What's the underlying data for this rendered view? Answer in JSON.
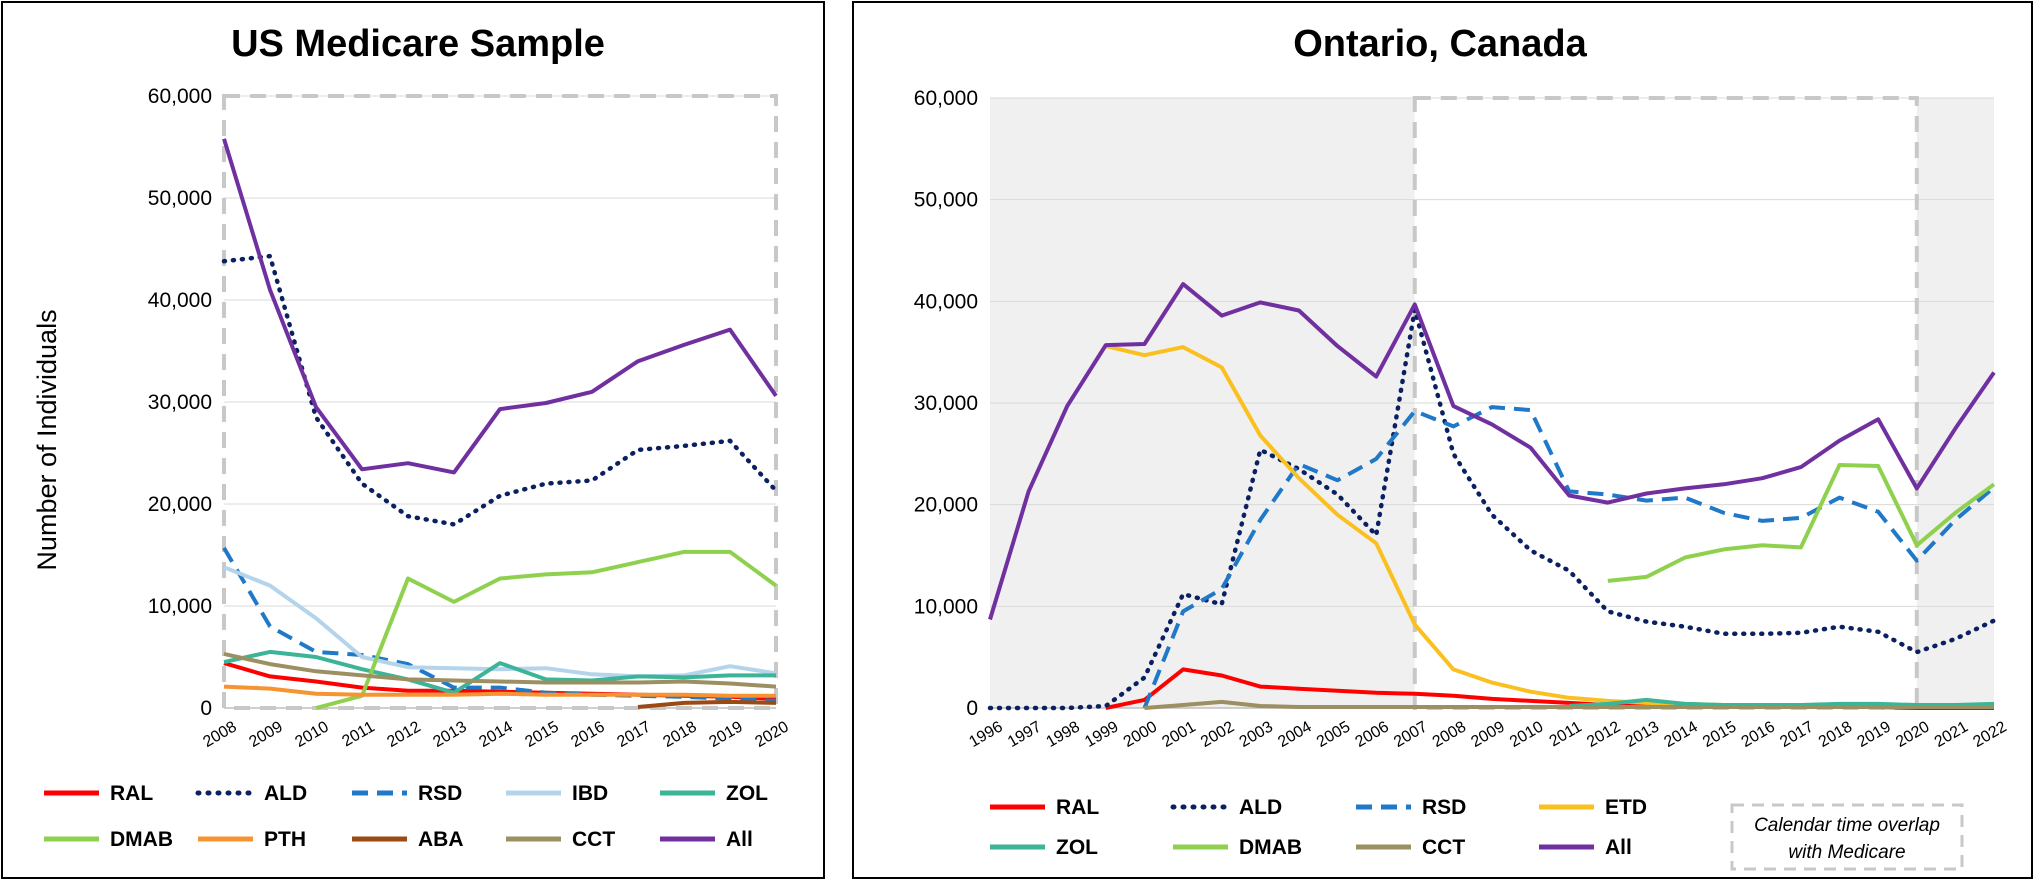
{
  "chart_data": [
    {
      "type": "line",
      "title": "US Medicare Sample",
      "ylabel": "Number of Individuals",
      "xlabel": "",
      "ylim": [
        0,
        60000
      ],
      "yticks": [
        "0",
        "10,000",
        "20,000",
        "30,000",
        "40,000",
        "50,000",
        "60,000"
      ],
      "x": [
        "2008",
        "2009",
        "2010",
        "2011",
        "2012",
        "2013",
        "2014",
        "2015",
        "2016",
        "2017",
        "2018",
        "2019",
        "2020"
      ],
      "series": [
        {
          "name": "RAL",
          "color": "#ff0000",
          "dash": "solid",
          "values": [
            4400,
            3100,
            2600,
            2000,
            1700,
            1700,
            1600,
            1500,
            1400,
            1300,
            1200,
            1100,
            900
          ]
        },
        {
          "name": "ALD",
          "color": "#0b2060",
          "dash": "dot",
          "values": [
            43800,
            44300,
            28500,
            22000,
            18800,
            18000,
            20800,
            22000,
            22300,
            25300,
            25700,
            26200,
            21300
          ]
        },
        {
          "name": "RSD",
          "color": "#1f78c8",
          "dash": "dash",
          "values": [
            15700,
            8000,
            5500,
            5200,
            4300,
            2000,
            2000,
            1500,
            1300,
            1200,
            1100,
            900,
            700
          ]
        },
        {
          "name": "IBD",
          "color": "#b4d4ec",
          "dash": "solid",
          "values": [
            13800,
            12000,
            8800,
            5000,
            4000,
            3900,
            3800,
            3900,
            3300,
            3100,
            3200,
            4100,
            3400
          ]
        },
        {
          "name": "ZOL",
          "color": "#3cb497",
          "dash": "solid",
          "values": [
            4500,
            5500,
            5000,
            3800,
            2800,
            1500,
            4400,
            2800,
            2700,
            3100,
            3000,
            3200,
            3200
          ]
        },
        {
          "name": "DMAB",
          "color": "#8fd14f",
          "dash": "solid",
          "values": [
            null,
            null,
            0,
            1200,
            12700,
            10400,
            12700,
            13100,
            13300,
            14300,
            15300,
            15300,
            12000
          ]
        },
        {
          "name": "PTH",
          "color": "#f59431",
          "dash": "solid",
          "values": [
            2100,
            1900,
            1400,
            1300,
            1300,
            1300,
            1400,
            1300,
            1300,
            1300,
            1300,
            1200,
            1200
          ]
        },
        {
          "name": "ABA",
          "color": "#9b4a13",
          "dash": "solid",
          "values": [
            null,
            null,
            null,
            null,
            null,
            null,
            null,
            null,
            null,
            100,
            500,
            600,
            500
          ]
        },
        {
          "name": "CCT",
          "color": "#9c8f62",
          "dash": "solid",
          "values": [
            5300,
            4300,
            3600,
            3200,
            2800,
            2700,
            2600,
            2500,
            2500,
            2500,
            2600,
            2400,
            2100
          ]
        },
        {
          "name": "All",
          "color": "#7030a0",
          "dash": "solid",
          "values": [
            55800,
            41000,
            29500,
            23400,
            24000,
            23100,
            29300,
            29900,
            31000,
            34000,
            35600,
            37100,
            30600
          ]
        }
      ],
      "legend": [
        "RAL",
        "ALD",
        "RSD",
        "IBD",
        "ZOL",
        "DMAB",
        "PTH",
        "ABA",
        "CCT",
        "All"
      ],
      "legend_position": "bottom",
      "overlap_window": [
        "2008",
        "2020"
      ]
    },
    {
      "type": "line",
      "title": "Ontario, Canada",
      "ylabel": "",
      "xlabel": "",
      "ylim": [
        0,
        60000
      ],
      "yticks": [
        "0",
        "10,000",
        "20,000",
        "30,000",
        "40,000",
        "50,000",
        "60,000"
      ],
      "x": [
        "1996",
        "1997",
        "1998",
        "1999",
        "2000",
        "2001",
        "2002",
        "2003",
        "2004",
        "2005",
        "2006",
        "2007",
        "2008",
        "2009",
        "2010",
        "2011",
        "2012",
        "2013",
        "2014",
        "2015",
        "2016",
        "2017",
        "2018",
        "2019",
        "2020",
        "2021",
        "2022"
      ],
      "series": [
        {
          "name": "RAL",
          "color": "#ff0000",
          "dash": "solid",
          "values": [
            null,
            null,
            null,
            0,
            800,
            3800,
            3200,
            2100,
            1900,
            1700,
            1500,
            1400,
            1200,
            900,
            700,
            500,
            300,
            200,
            200,
            100,
            100,
            100,
            100,
            100,
            0,
            0,
            0
          ]
        },
        {
          "name": "ALD",
          "color": "#0b2060",
          "dash": "dot",
          "values": [
            0,
            0,
            0,
            200,
            3000,
            11200,
            10200,
            25400,
            23500,
            21000,
            17000,
            39200,
            25000,
            19000,
            15500,
            13500,
            9500,
            8500,
            8000,
            7300,
            7300,
            7400,
            8000,
            7500,
            5500,
            6800,
            8600
          ]
        },
        {
          "name": "RSD",
          "color": "#1f78c8",
          "dash": "dash",
          "values": [
            null,
            null,
            null,
            null,
            0,
            9500,
            11700,
            18500,
            24000,
            22400,
            24500,
            29200,
            27700,
            29600,
            29300,
            21300,
            21000,
            20400,
            20700,
            19200,
            18400,
            18700,
            20700,
            19300,
            14500,
            18500,
            21700
          ]
        },
        {
          "name": "ETD",
          "color": "#f9c020",
          "dash": "solid",
          "values": [
            null,
            null,
            null,
            35600,
            34700,
            35500,
            33500,
            26800,
            22600,
            19000,
            16200,
            8200,
            3800,
            2500,
            1600,
            1000,
            700,
            500,
            400,
            300,
            200,
            200,
            200,
            200,
            200,
            null,
            null
          ]
        },
        {
          "name": "ZOL",
          "color": "#3cb497",
          "dash": "solid",
          "values": [
            null,
            null,
            null,
            null,
            null,
            null,
            null,
            null,
            null,
            null,
            null,
            null,
            null,
            null,
            null,
            200,
            400,
            800,
            400,
            300,
            300,
            300,
            400,
            400,
            300,
            300,
            400
          ]
        },
        {
          "name": "DMAB",
          "color": "#8fd14f",
          "dash": "solid",
          "values": [
            null,
            null,
            null,
            null,
            null,
            null,
            null,
            null,
            null,
            null,
            null,
            null,
            null,
            null,
            null,
            null,
            12500,
            12900,
            14800,
            15600,
            16000,
            15800,
            23900,
            23800,
            16000,
            19200,
            22000
          ]
        },
        {
          "name": "CCT",
          "color": "#9c8f62",
          "dash": "solid",
          "values": [
            null,
            null,
            null,
            null,
            0,
            300,
            600,
            200,
            100,
            100,
            100,
            100,
            100,
            100,
            100,
            100,
            100,
            100,
            100,
            100,
            100,
            100,
            100,
            100,
            100,
            100,
            100
          ]
        },
        {
          "name": "All",
          "color": "#7030a0",
          "dash": "solid",
          "values": [
            8700,
            21300,
            29700,
            35700,
            35800,
            41700,
            38600,
            39900,
            39100,
            35600,
            32600,
            39700,
            29700,
            27900,
            25600,
            20900,
            20200,
            21100,
            21600,
            22000,
            22600,
            23700,
            26300,
            28400,
            21600,
            27500,
            33000
          ]
        }
      ],
      "legend": [
        "RAL",
        "ALD",
        "RSD",
        "ETD",
        "ZOL",
        "DMAB",
        "CCT",
        "All"
      ],
      "legend_position": "bottom",
      "overlap_window": [
        "2007",
        "2020"
      ],
      "overlap_note": [
        "Calendar time overlap",
        "with Medicare"
      ]
    }
  ]
}
